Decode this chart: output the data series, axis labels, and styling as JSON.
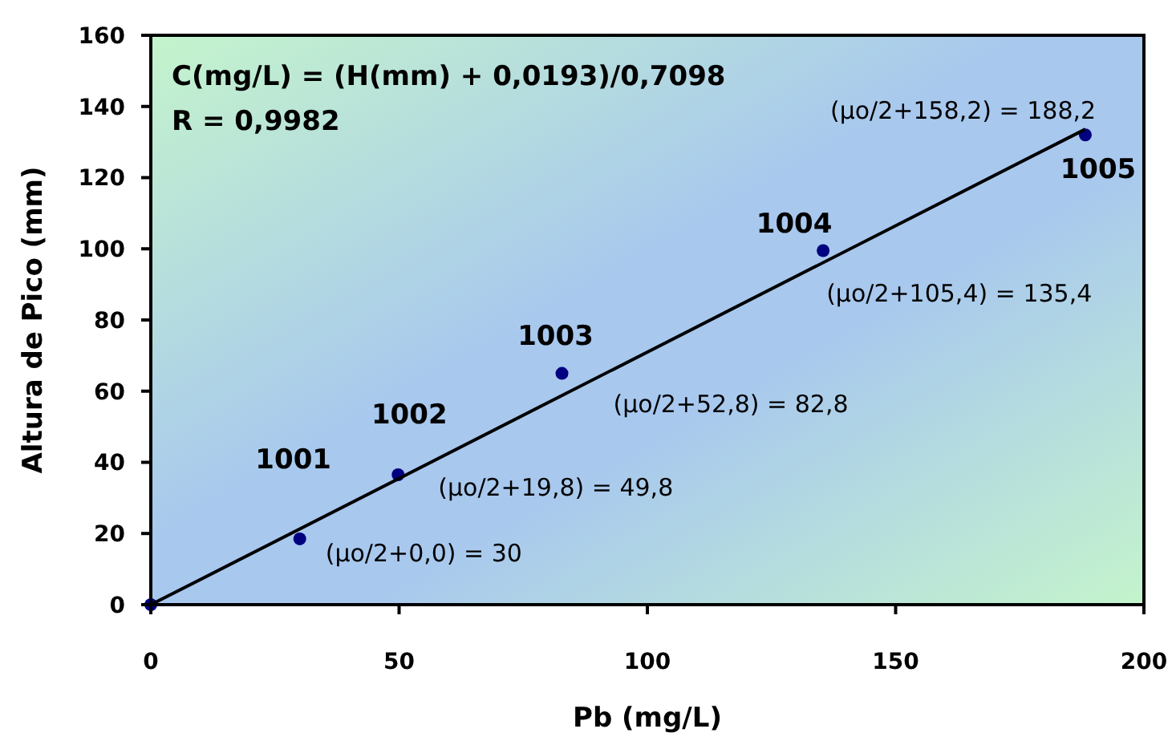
{
  "chart_data": {
    "type": "scatter",
    "xlabel": "Pb (mg/L)",
    "ylabel": "Altura de Pico (mm)",
    "xlim": [
      0,
      200
    ],
    "xticks": [
      0,
      50,
      100,
      150,
      200
    ],
    "ylim": [
      0,
      160
    ],
    "yticks": [
      0,
      20,
      40,
      60,
      80,
      100,
      120,
      140,
      160
    ],
    "grid": false,
    "marker": "circle",
    "series": [
      {
        "color": "#000080",
        "x": [
          0,
          30,
          49.8,
          82.8,
          135.4,
          188.2
        ],
        "values": [
          0,
          18.5,
          36.5,
          65,
          99.5,
          132
        ]
      },
      {
        "type": "line",
        "color": "#000000",
        "x": [
          0,
          188.2
        ],
        "values": [
          0,
          133.6
        ],
        "line_style": "solid",
        "marker": "none"
      }
    ],
    "annotations": [
      "C(mg/L) = (H(mm) + 0,0193)/0,7098",
      "R = 0,9982",
      {
        "text": "1001",
        "x": 30,
        "y": 18.5
      },
      {
        "text": "1002",
        "x": 49.8,
        "y": 36.5
      },
      {
        "text": "1003",
        "x": 82.8,
        "y": 65
      },
      {
        "text": "1004",
        "x": 135.4,
        "y": 99.5
      },
      {
        "text": "1005",
        "x": 188.2,
        "y": 132
      },
      {
        "text": "(μo/2+0,0) = 30",
        "x": 30,
        "y": 18.5
      },
      {
        "text": "(μo/2+19,8) = 49,8",
        "x": 49.8,
        "y": 36.5
      },
      {
        "text": "(μo/2+52,8) = 82,8",
        "x": 82.8,
        "y": 65
      },
      {
        "text": "(μo/2+105,4) = 135,4",
        "x": 135.4,
        "y": 99.5
      },
      {
        "text": "(μo/2+158,2) = 188,2",
        "x": 188.2,
        "y": 132
      }
    ]
  }
}
